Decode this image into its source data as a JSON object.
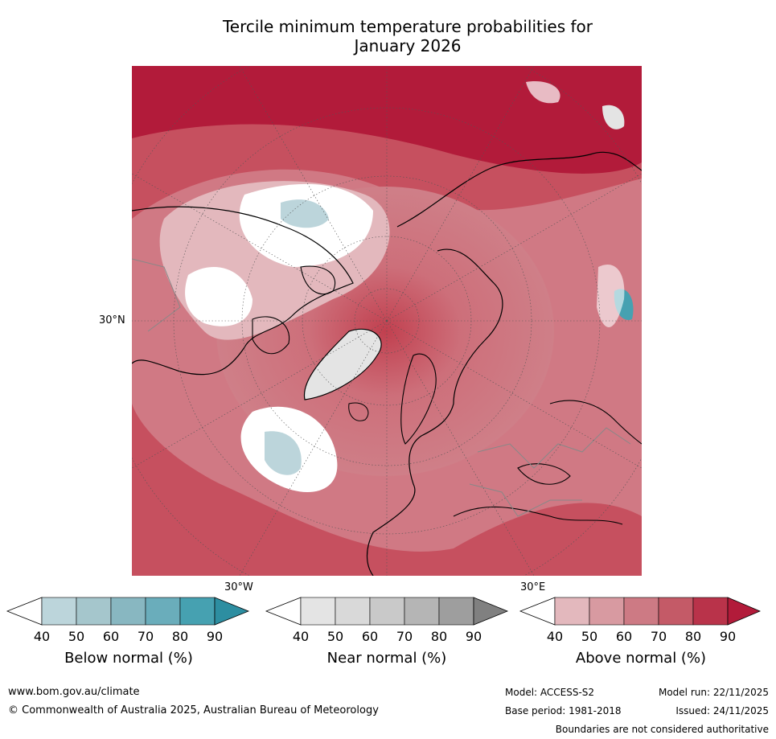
{
  "title": {
    "line1": "Tercile minimum temperature probabilities for",
    "line2": "January 2026"
  },
  "map": {
    "lat_label": "30°N",
    "lon_labels": [
      "30°W",
      "30°E"
    ],
    "projection": "north polar stereographic"
  },
  "legends": [
    {
      "title": "Below normal (%)",
      "ticks": [
        "40",
        "50",
        "60",
        "70",
        "80",
        "90"
      ],
      "colors": [
        "#ffffff",
        "#bcd5db",
        "#a5c6cc",
        "#88b7c1",
        "#6aadbb",
        "#46a1b1",
        "#2d8ea1"
      ]
    },
    {
      "title": "Near normal (%)",
      "ticks": [
        "40",
        "50",
        "60",
        "70",
        "80",
        "90"
      ],
      "colors": [
        "#ffffff",
        "#e4e4e4",
        "#d9d9d9",
        "#c9c9c9",
        "#b5b5b5",
        "#9e9e9e",
        "#808080"
      ]
    },
    {
      "title": "Above normal (%)",
      "ticks": [
        "40",
        "50",
        "60",
        "70",
        "80",
        "90"
      ],
      "colors": [
        "#ffffff",
        "#e3b8bd",
        "#d89aa1",
        "#cd7a84",
        "#c45a67",
        "#b9334a",
        "#b21b3a"
      ]
    }
  ],
  "footer": {
    "website": "www.bom.gov.au/climate",
    "copyright": "© Commonwealth of Australia 2025, Australian Bureau of Meteorology",
    "model": "Model: ACCESS-S2",
    "base_period": "Base period: 1981-2018",
    "model_run": "Model run: 22/11/2025",
    "issued": "Issued: 24/11/2025",
    "disclaimer": "Boundaries are not considered authoritative"
  }
}
